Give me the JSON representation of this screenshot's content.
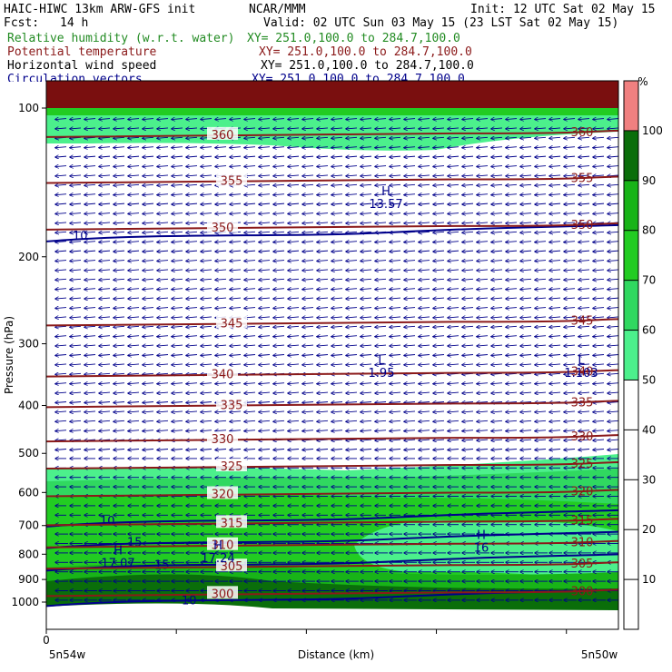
{
  "header": {
    "model": "HAIC-HIWC 13km ARW-GFS init",
    "center": "NCAR/MMM",
    "init": "Init: 12 UTC Sat 02 May 15",
    "fcst_label": "Fcst:",
    "fcst_value": "14 h",
    "valid": "Valid: 02 UTC Sun 03 May 15 (23 LST Sat 02 May 15)",
    "fields": [
      {
        "name": "Relative humidity (w.r.t. water)",
        "xy": "XY= 251.0,100.0 to 284.7,100.0",
        "color": "#228B22"
      },
      {
        "name": "Potential temperature",
        "xy": "XY= 251.0,100.0 to 284.7,100.0",
        "color": "#8B1A1A"
      },
      {
        "name": "Horizontal wind speed",
        "xy": "XY= 251.0,100.0 to 284.7,100.0",
        "color": "#000000"
      },
      {
        "name": "Circulation vectors",
        "xy": "XY= 251.0,100.0 to 284.7,100.0",
        "color": "#00008B"
      }
    ]
  },
  "chart_data": {
    "type": "heatmap",
    "xlabel": "Distance (km)",
    "ylabel": "Pressure (hPa)",
    "x_ticks": [
      "0"
    ],
    "x_end_labels": [
      "5n54w",
      "5n50w"
    ],
    "y_ticks": [
      100,
      200,
      300,
      400,
      500,
      600,
      700,
      800,
      900,
      1000
    ],
    "y_axis": {
      "scale": "log",
      "range": [
        1000,
        80
      ]
    },
    "colorbar": {
      "unit": "%",
      "ticks": [
        10,
        20,
        30,
        40,
        50,
        60,
        70,
        80,
        90,
        100
      ],
      "bands": [
        {
          "from": 50,
          "to": 60,
          "color": "#4cf08c"
        },
        {
          "from": 60,
          "to": 70,
          "color": "#30d860"
        },
        {
          "from": 70,
          "to": 80,
          "color": "#22cc22"
        },
        {
          "from": 80,
          "to": 90,
          "color": "#18b418"
        },
        {
          "from": 90,
          "to": 100,
          "color": "#0a6e0a"
        },
        {
          "from": 100,
          "to": 110,
          "color": "#f08080"
        }
      ]
    },
    "theta_contours": [
      {
        "value": "360",
        "p": 113
      },
      {
        "value": "355",
        "p": 140
      },
      {
        "value": "350",
        "p": 174
      },
      {
        "value": "345",
        "p": 272
      },
      {
        "value": "340",
        "p": 345
      },
      {
        "value": "335",
        "p": 398
      },
      {
        "value": "330",
        "p": 467
      },
      {
        "value": "325",
        "p": 530
      },
      {
        "value": "320",
        "p": 603
      },
      {
        "value": "315",
        "p": 690
      },
      {
        "value": "310",
        "p": 765
      },
      {
        "value": "305",
        "p": 845
      },
      {
        "value": "300",
        "p": 960
      }
    ],
    "wind_contours": [
      {
        "value": "10",
        "p": 180
      },
      {
        "value": "10",
        "p": 680
      },
      {
        "value": "15",
        "p": 752
      },
      {
        "value": "15",
        "p": 835
      },
      {
        "value": "10",
        "p": 985
      }
    ],
    "annotations": [
      {
        "label": "H",
        "value": "13.57",
        "p": 150
      },
      {
        "label": "L",
        "value": "1.95",
        "p": 330
      },
      {
        "label": "L",
        "value": "1.103",
        "p": 330
      },
      {
        "label": "H",
        "value": "16",
        "p": 745
      },
      {
        "label": "H",
        "value": "17.07",
        "p": 800
      },
      {
        "label": "H",
        "value": "17.24",
        "p": 782
      }
    ],
    "wind_vector_color": "#00008B",
    "theta_color": "#8B1A1A",
    "speed_color": "#00008B"
  }
}
